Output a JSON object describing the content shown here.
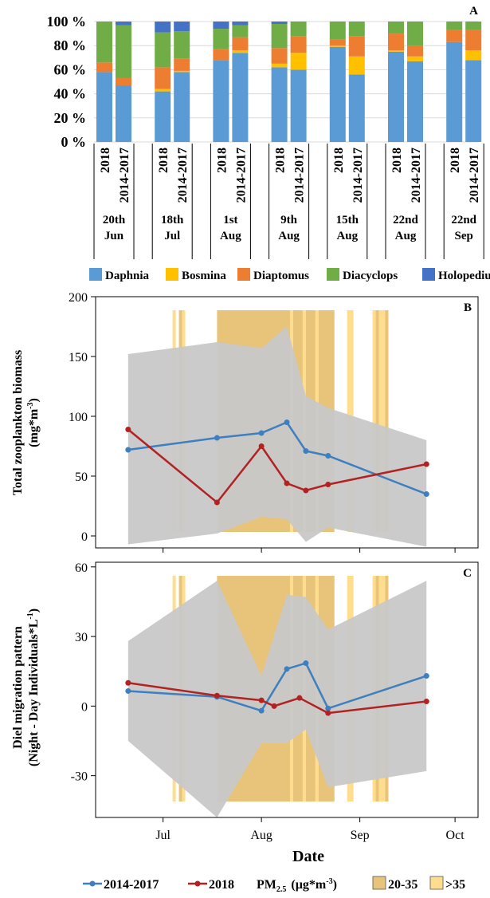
{
  "chart_data": [
    {
      "panel": "A",
      "type": "bar",
      "stacked": true,
      "ylim": [
        0,
        100
      ],
      "yticks": [
        "0 %",
        "20 %",
        "40 %",
        "60 %",
        "80 %",
        "100 %"
      ],
      "groups": [
        {
          "date": [
            "20th",
            "Jun"
          ],
          "bars": [
            {
              "label": "2018",
              "values": [
                58,
                0,
                8,
                34,
                0
              ]
            },
            {
              "label": "2014-2017",
              "values": [
                47,
                0,
                6,
                44,
                3
              ]
            }
          ]
        },
        {
          "date": [
            "18th",
            "Jul"
          ],
          "bars": [
            {
              "label": "2018",
              "values": [
                42,
                2,
                18,
                29,
                9
              ]
            },
            {
              "label": "2014-2017",
              "values": [
                58,
                1,
                10,
                23,
                8
              ]
            }
          ]
        },
        {
          "date": [
            "1st",
            "Aug"
          ],
          "bars": [
            {
              "label": "2018",
              "values": [
                68,
                0,
                9,
                17,
                6
              ]
            },
            {
              "label": "2014-2017",
              "values": [
                74,
                2,
                11,
                10,
                3
              ]
            }
          ]
        },
        {
          "date": [
            "9th",
            "Aug"
          ],
          "bars": [
            {
              "label": "2018",
              "values": [
                62,
                3,
                13,
                20,
                2
              ]
            },
            {
              "label": "2014-2017",
              "values": [
                60,
                14,
                14,
                12,
                0
              ]
            }
          ]
        },
        {
          "date": [
            "15th",
            "Aug"
          ],
          "bars": [
            {
              "label": "2018",
              "values": [
                79,
                1,
                5,
                15,
                0
              ]
            },
            {
              "label": "2014-2017",
              "values": [
                56,
                15,
                17,
                12,
                0
              ]
            }
          ]
        },
        {
          "date": [
            "22nd",
            "Aug"
          ],
          "bars": [
            {
              "label": "2018",
              "values": [
                75,
                1,
                14,
                10,
                0
              ]
            },
            {
              "label": "2014-2017",
              "values": [
                67,
                4,
                9,
                20,
                0
              ]
            }
          ]
        },
        {
          "date": [
            "22nd",
            "Sep"
          ],
          "bars": [
            {
              "label": "2018",
              "values": [
                83,
                0,
                10,
                7,
                0
              ]
            },
            {
              "label": "2014-2017",
              "values": [
                68,
                8,
                17,
                7,
                0
              ]
            }
          ]
        }
      ],
      "legend": [
        {
          "name": "Daphnia",
          "color": "#5b9bd5"
        },
        {
          "name": "Bosmina",
          "color": "#ffc000"
        },
        {
          "name": "Diaptomus",
          "color": "#ed7d31"
        },
        {
          "name": "Diacyclops",
          "color": "#70ad47"
        },
        {
          "name": "Holopedium",
          "color": "#4472c4"
        }
      ]
    },
    {
      "panel": "B",
      "type": "line",
      "ylabel_lines": [
        "Total zooplankton biomass",
        "(mg*m"
      ],
      "ylabel_sup": "-3",
      "ylabel_close": ")",
      "ylim": [
        -10,
        200
      ],
      "yticks": [
        0,
        50,
        100,
        150,
        200
      ],
      "series": [
        {
          "name": "2014-2017",
          "color": "#3d7fbf",
          "x": [
            "2018-06-20",
            "2018-07-18",
            "2018-08-01",
            "2018-08-09",
            "2018-08-15",
            "2018-08-22",
            "2018-09-22"
          ],
          "y": [
            72,
            82,
            86,
            95,
            71,
            67,
            35
          ]
        },
        {
          "name": "2018",
          "color": "#b22222",
          "x": [
            "2018-06-20",
            "2018-07-18",
            "2018-08-01",
            "2018-08-09",
            "2018-08-15",
            "2018-08-22",
            "2018-09-22"
          ],
          "y": [
            89,
            28,
            75,
            44,
            38,
            43,
            60
          ]
        }
      ],
      "band": {
        "x": [
          "2018-06-20",
          "2018-07-18",
          "2018-08-01",
          "2018-08-09",
          "2018-08-15",
          "2018-08-22",
          "2018-09-22"
        ],
        "upper": [
          152,
          162,
          157,
          175,
          117,
          107,
          80
        ],
        "lower": [
          -7,
          2,
          16,
          14,
          -5,
          7,
          -9
        ]
      }
    },
    {
      "panel": "C",
      "type": "line",
      "ylabel_lines": [
        "Diel migration pattern",
        "(Night - Day Individuals*L"
      ],
      "ylabel_sup": "-1",
      "ylabel_close": ")",
      "ylim": [
        -48,
        62
      ],
      "yticks": [
        -30,
        0,
        30,
        60
      ],
      "series": [
        {
          "name": "2014-2017",
          "color": "#3d7fbf",
          "x": [
            "2018-06-20",
            "2018-07-18",
            "2018-08-01",
            "2018-08-09",
            "2018-08-15",
            "2018-08-22",
            "2018-09-22"
          ],
          "y": [
            6.5,
            4,
            -2,
            16,
            18.5,
            -1,
            13
          ]
        },
        {
          "name": "2018",
          "color": "#b22222",
          "x": [
            "2018-06-20",
            "2018-07-18",
            "2018-08-01",
            "2018-08-05",
            "2018-08-13",
            "2018-08-22",
            "2018-09-22"
          ],
          "y": [
            10,
            4.5,
            2.5,
            0,
            3.5,
            -3,
            2
          ]
        }
      ],
      "band": {
        "x": [
          "2018-06-20",
          "2018-07-18",
          "2018-08-01",
          "2018-08-09",
          "2018-08-15",
          "2018-08-22",
          "2018-09-22"
        ],
        "upper": [
          28,
          54,
          13,
          48,
          47,
          33,
          54
        ],
        "lower": [
          -15,
          -48,
          -16,
          -16,
          -10,
          -35,
          -28
        ]
      }
    }
  ],
  "pm_bands": {
    "low_color": "#e8c37a",
    "high_color": "#ffdd8e",
    "periods": [
      {
        "start": "2018-07-04",
        "end": "2018-07-05",
        "level": ">35"
      },
      {
        "start": "2018-07-06",
        "end": "2018-07-07",
        "level": "20-35"
      },
      {
        "start": "2018-07-07",
        "end": "2018-07-08",
        "level": ">35"
      },
      {
        "start": "2018-07-18",
        "end": "2018-08-10",
        "level": "20-35"
      },
      {
        "start": "2018-08-10",
        "end": "2018-08-11",
        "level": ">35"
      },
      {
        "start": "2018-08-11",
        "end": "2018-08-14",
        "level": "20-35"
      },
      {
        "start": "2018-08-14",
        "end": "2018-08-15",
        "level": ">35"
      },
      {
        "start": "2018-08-15",
        "end": "2018-08-18",
        "level": "20-35"
      },
      {
        "start": "2018-08-18",
        "end": "2018-08-19",
        "level": ">35"
      },
      {
        "start": "2018-08-19",
        "end": "2018-08-24",
        "level": "20-35"
      },
      {
        "start": "2018-08-28",
        "end": "2018-08-30",
        "level": ">35"
      },
      {
        "start": "2018-09-05",
        "end": "2018-09-06",
        "level": ">35"
      },
      {
        "start": "2018-09-06",
        "end": "2018-09-07",
        "level": "20-35"
      },
      {
        "start": "2018-09-07",
        "end": "2018-09-09",
        "level": ">35"
      },
      {
        "start": "2018-09-09",
        "end": "2018-09-10",
        "level": "20-35"
      }
    ]
  },
  "x_axis": {
    "label": "Date",
    "ticks": [
      {
        "label": "Jul",
        "date": "2018-07-01"
      },
      {
        "label": "Aug",
        "date": "2018-08-01"
      },
      {
        "label": "Sep",
        "date": "2018-09-01"
      },
      {
        "label": "Oct",
        "date": "2018-10-01"
      }
    ]
  },
  "bottom_legend": {
    "series": [
      {
        "name": "2014-2017",
        "color": "#3d7fbf"
      },
      {
        "name": "2018",
        "color": "#b22222"
      }
    ],
    "pm_title": "PM",
    "pm_sub": "2.5",
    "pm_unit": "(µg*m",
    "pm_unit_sup": "-3",
    "pm_unit_close": ")",
    "pm_items": [
      {
        "label": "20-35",
        "color": "#e8c37a"
      },
      {
        "label": ">35",
        "color": "#ffdd8e"
      }
    ]
  }
}
